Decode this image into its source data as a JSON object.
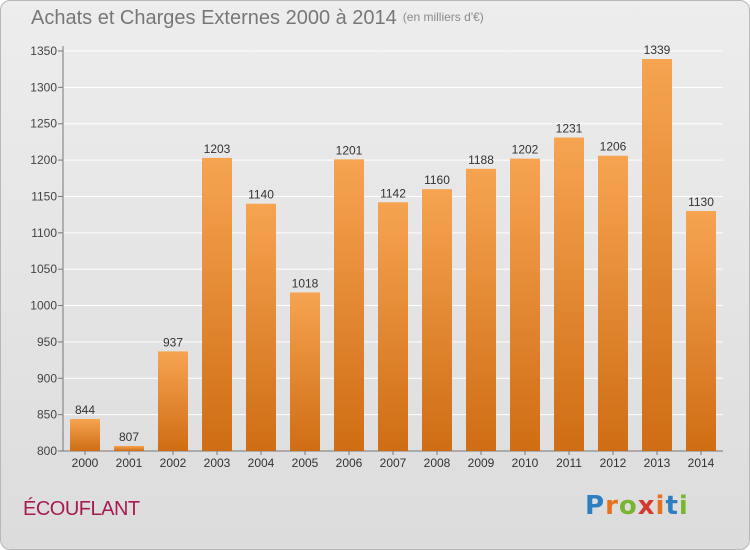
{
  "header": {
    "title": "Achats et Charges Externes 2000 à 2014",
    "subtitle": "(en milliers d'€)"
  },
  "footer": {
    "commune": "ÉCOUFLANT",
    "logo_text": "Proxiti"
  },
  "colors": {
    "bar_top": "#f6a451",
    "bar_bottom": "#cf6d14",
    "grid": "#ffffff",
    "title": "#777777",
    "commune": "#a61c52"
  },
  "chart_data": {
    "type": "bar",
    "title": "Achats et Charges Externes 2000 à 2014",
    "subtitle": "(en milliers d'€)",
    "categories": [
      "2000",
      "2001",
      "2002",
      "2003",
      "2004",
      "2005",
      "2006",
      "2007",
      "2008",
      "2009",
      "2010",
      "2011",
      "2012",
      "2013",
      "2014"
    ],
    "values": [
      844,
      807,
      937,
      1203,
      1140,
      1018,
      1201,
      1142,
      1160,
      1188,
      1202,
      1231,
      1206,
      1339,
      1130
    ],
    "ylim": [
      800,
      1350
    ],
    "yticks": [
      800,
      850,
      900,
      950,
      1000,
      1050,
      1100,
      1150,
      1200,
      1250,
      1300,
      1350
    ],
    "grid": true,
    "data_labels": true
  }
}
